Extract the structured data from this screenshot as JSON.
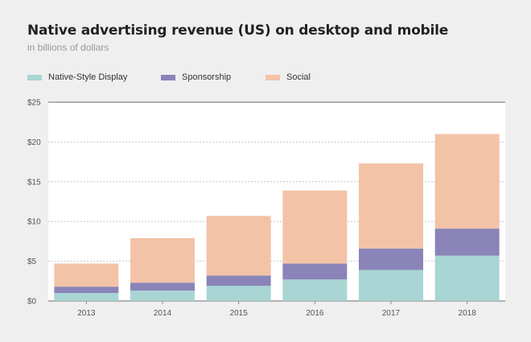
{
  "header": {
    "title": "Native advertising revenue (US) on desktop and mobile",
    "subtitle": "in billions of dollars"
  },
  "colors": {
    "native_style_display": "#a8d5d3",
    "sponsorship": "#8a84b8",
    "social": "#f3c3a8",
    "plot_bg": "#ffffff",
    "page_bg": "#efefef",
    "grid": "#bbbbbb"
  },
  "chart_data": {
    "type": "bar",
    "stacked": true,
    "title": "Native advertising revenue (US) on desktop and mobile",
    "subtitle": "in billions of dollars",
    "categories": [
      "2013",
      "2014",
      "2015",
      "2016",
      "2017",
      "2018"
    ],
    "series": [
      {
        "name": "Native-Style Display",
        "color": "#a8d5d3",
        "values": [
          1.0,
          1.3,
          1.9,
          2.7,
          3.9,
          5.7
        ]
      },
      {
        "name": "Sponsorship",
        "color": "#8a84b8",
        "values": [
          0.8,
          1.0,
          1.3,
          2.0,
          2.7,
          3.4
        ]
      },
      {
        "name": "Social",
        "color": "#f3c3a8",
        "values": [
          2.9,
          5.6,
          7.5,
          9.2,
          10.7,
          11.9
        ]
      }
    ],
    "ylim": [
      0,
      25
    ],
    "yticks": [
      0,
      5,
      10,
      15,
      20,
      25
    ],
    "ytick_labels": [
      "$0",
      "$5",
      "$10",
      "$15",
      "$20",
      "$25"
    ],
    "xlabel": "",
    "ylabel": "",
    "grid": true,
    "legend_position": "top-left"
  }
}
